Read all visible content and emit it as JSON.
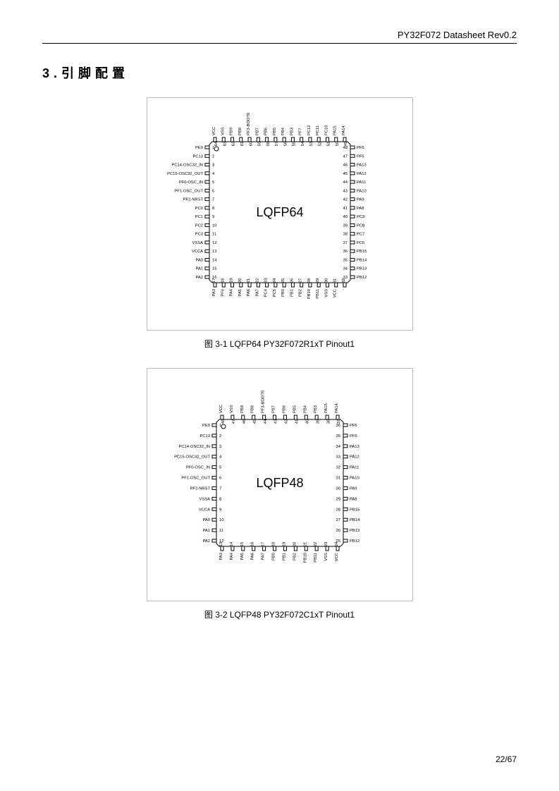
{
  "header": {
    "title": "PY32F072 Datasheet Rev0.2"
  },
  "section": {
    "number": "3.",
    "title": "引脚配置"
  },
  "footer": {
    "page": "22/67"
  },
  "fig1": {
    "caption": "图 3-1 LQFP64 PY32F072R1xT Pinout1",
    "chip_label": "LQFP64",
    "chip_label_fontsize": 18,
    "label_fontsize": 5.8,
    "stroke": "#000000",
    "stroke_width": 1,
    "pin_count": 64,
    "left": [
      "PE9",
      "PC13",
      "PC14-OSC32_IN",
      "PC15-OSC32_OUT",
      "PF0-OSC_IN",
      "PF1-OSC_OUT",
      "PF2-NRST",
      "PC0",
      "PC1",
      "PC2",
      "PC3",
      "VSSA",
      "VCCA",
      "PA0",
      "PA1",
      "PA2"
    ],
    "bottom": [
      "PA3",
      "PF4",
      "PA4",
      "PA5",
      "PA6",
      "PA7",
      "PC4",
      "PC5",
      "PB0",
      "PB1",
      "PB2",
      "PB10",
      "PB11",
      "VSS",
      "VCC",
      "-"
    ],
    "right": [
      "PF6",
      "PF5",
      "PA13",
      "PA12",
      "PA11",
      "PA10",
      "PA9",
      "PA8",
      "PC9",
      "PC8",
      "PC7",
      "PC6",
      "PB15",
      "PB14",
      "PB13",
      "PB12"
    ],
    "top": [
      "VCC",
      "VSS",
      "PB9",
      "PB8",
      "PF3-BOOT0",
      "PB7",
      "PB6",
      "PB5",
      "PB4",
      "PB3",
      "PF7",
      "PC12",
      "PC11",
      "PC10",
      "PA15",
      "PA14"
    ]
  },
  "fig2": {
    "caption": "图 3-2 LQFP48 PY32F072C1xT Pinout1",
    "chip_label": "LQFP48",
    "chip_label_fontsize": 18,
    "label_fontsize": 5.8,
    "stroke": "#000000",
    "stroke_width": 1,
    "pin_count": 48,
    "left": [
      "PE9",
      "PC13",
      "PC14-OSC32_IN",
      "PC15-OSC32_OUT",
      "PF0-OSC_IN",
      "PF1-OSC_OUT",
      "PF2-NRST",
      "VSSA",
      "VCCA",
      "PA0",
      "PA1",
      "PA2"
    ],
    "bottom": [
      "PA3",
      "PA4",
      "PA5",
      "PA6",
      "PA7",
      "PB0",
      "PB1",
      "PB2",
      "PB10",
      "PB11",
      "VSS",
      "VCC"
    ],
    "right": [
      "PF6",
      "PF5",
      "PA13",
      "PA12",
      "PA11",
      "PA10",
      "PA9",
      "PA8",
      "PB15",
      "PB14",
      "PB13",
      "PB12"
    ],
    "top": [
      "VCC",
      "VSS",
      "PB9",
      "PB8",
      "PF3-BOOT0",
      "PB7",
      "PB6",
      "PB5",
      "PB4",
      "PB3",
      "PA15",
      "PA14"
    ]
  }
}
